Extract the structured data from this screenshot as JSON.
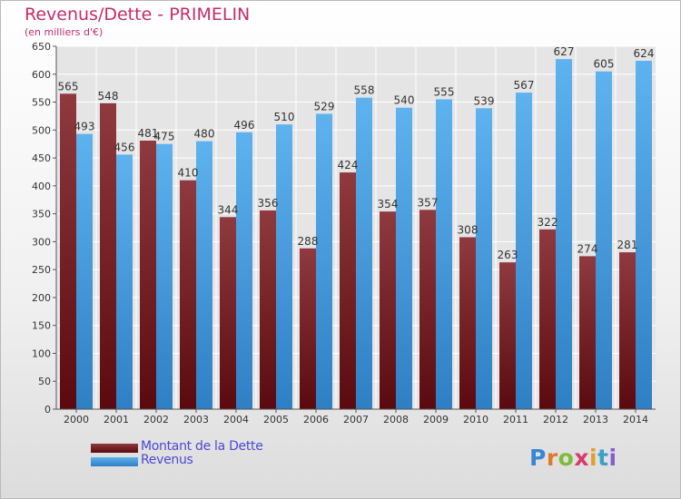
{
  "header": {
    "title": "Revenus/Dette - PRIMELIN",
    "subtitle": "(en milliers d'€)"
  },
  "chart_data": {
    "type": "bar",
    "title": "Revenus/Dette - PRIMELIN",
    "subtitle": "(en milliers d'€)",
    "xlabel": "",
    "ylabel": "",
    "ylim": [
      0,
      650
    ],
    "ytick_step": 50,
    "grid": true,
    "legend_position": "bottom-left",
    "categories": [
      "2000",
      "2001",
      "2002",
      "2003",
      "2004",
      "2005",
      "2006",
      "2007",
      "2008",
      "2009",
      "2010",
      "2011",
      "2012",
      "2013",
      "2014"
    ],
    "series": [
      {
        "name": "Montant de la Dette",
        "color": "#7a1f24",
        "values": [
          565,
          548,
          481,
          410,
          344,
          356,
          288,
          424,
          354,
          357,
          308,
          263,
          322,
          274,
          281
        ]
      },
      {
        "name": "Revenus",
        "color": "#4fa3e3",
        "values": [
          493,
          456,
          475,
          480,
          496,
          510,
          529,
          558,
          540,
          555,
          539,
          567,
          627,
          605,
          624
        ]
      }
    ]
  },
  "logo": {
    "letters": [
      "P",
      "r",
      "o",
      "x",
      "i",
      "t",
      "i"
    ],
    "colors": [
      "#3a86d4",
      "#e07a2a",
      "#7bbd3a",
      "#d83a6a",
      "#e0a02a",
      "#3aa0c8",
      "#8a5ad0"
    ]
  }
}
